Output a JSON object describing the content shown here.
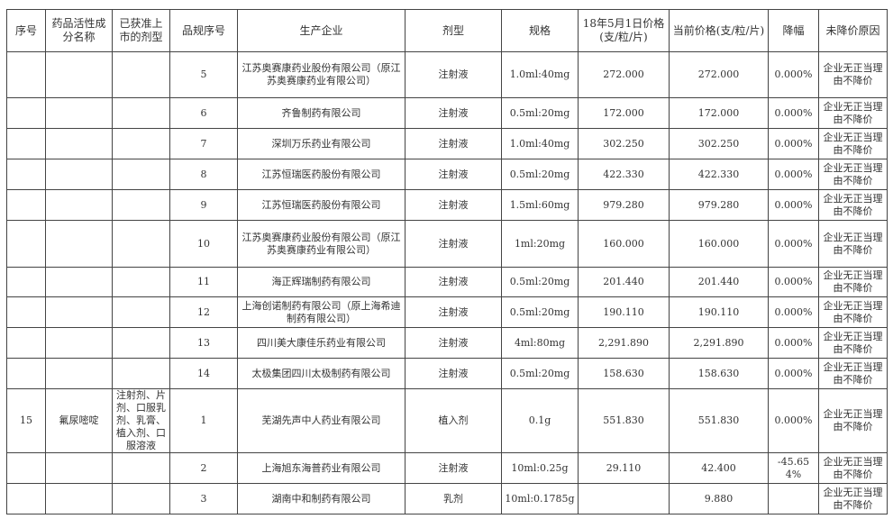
{
  "headers": [
    "序号",
    "药品活性成分名称",
    "已获准上市的剂型",
    "品规序号",
    "生产企业",
    "剂型",
    "规格",
    "18年5月1日价格(支/粒/片)",
    "当前价格(支/粒/片)",
    "降幅",
    "未降价原因"
  ],
  "rows": [
    [
      "",
      "",
      "",
      "5",
      "江苏奥赛康药业股份有限公司（原江苏奥赛康药业有限公司）",
      "注射液",
      "1.0ml:40mg",
      "272.000",
      "272.000",
      "0.000%",
      "企业无正当理由不降价"
    ],
    [
      "",
      "",
      "",
      "6",
      "齐鲁制药有限公司",
      "注射液",
      "0.5ml:20mg",
      "172.000",
      "172.000",
      "0.000%",
      "企业无正当理由不降价"
    ],
    [
      "",
      "",
      "",
      "7",
      "深圳万乐药业有限公司",
      "注射液",
      "1.0ml:40mg",
      "302.250",
      "302.250",
      "0.000%",
      "企业无正当理由不降价"
    ],
    [
      "",
      "",
      "",
      "8",
      "江苏恒瑞医药股份有限公司",
      "注射液",
      "0.5ml:20mg",
      "422.330",
      "422.330",
      "0.000%",
      "企业无正当理由不降价"
    ],
    [
      "",
      "",
      "",
      "9",
      "江苏恒瑞医药股份有限公司",
      "注射液",
      "1.5ml:60mg",
      "979.280",
      "979.280",
      "0.000%",
      "企业无正当理由不降价"
    ],
    [
      "",
      "",
      "",
      "10",
      "江苏奥赛康药业股份有限公司（原江苏奥赛康药业有限公司）",
      "注射液",
      "1ml:20mg",
      "160.000",
      "160.000",
      "0.000%",
      "企业无正当理由不降价"
    ],
    [
      "",
      "",
      "",
      "11",
      "海正辉瑞制药有限公司",
      "注射液",
      "0.5ml:20mg",
      "201.440",
      "201.440",
      "0.000%",
      "企业无正当理由不降价"
    ],
    [
      "",
      "",
      "",
      "12",
      "上海创诺制药有限公司（原上海希迪制药有限公司）",
      "注射液",
      "0.5ml:20mg",
      "190.110",
      "190.110",
      "0.000%",
      "企业无正当理由不降价"
    ],
    [
      "",
      "",
      "",
      "13",
      "四川美大康佳乐药业有限公司",
      "注射液",
      "4ml:80mg",
      "2,291.890",
      "2,291.890",
      "0.000%",
      "企业无正当理由不降价"
    ],
    [
      "",
      "",
      "",
      "14",
      "太极集团四川太极制药有限公司",
      "注射液",
      "0.5ml:20mg",
      "158.630",
      "158.630",
      "0.000%",
      "企业无正当理由不降价"
    ],
    [
      "15",
      "氟尿嘧啶",
      "注射剂、片剂、口服乳剂、乳膏、植入剂、口服溶液",
      "1",
      "芜湖先声中人药业有限公司",
      "植入剂",
      "0.1g",
      "551.830",
      "551.830",
      "0.000%",
      "企业无正当理由不降价"
    ],
    [
      "",
      "",
      "",
      "2",
      "上海旭东海普药业有限公司",
      "注射液",
      "10ml:0.25g",
      "29.110",
      "42.400",
      "-45.654%",
      "企业无正当理由不降价"
    ],
    [
      "",
      "",
      "",
      "3",
      "湖南中和制药有限公司",
      "乳剂",
      "10ml:0.1785g",
      "",
      "9.880",
      "",
      "企业无正当理由不降价"
    ]
  ]
}
